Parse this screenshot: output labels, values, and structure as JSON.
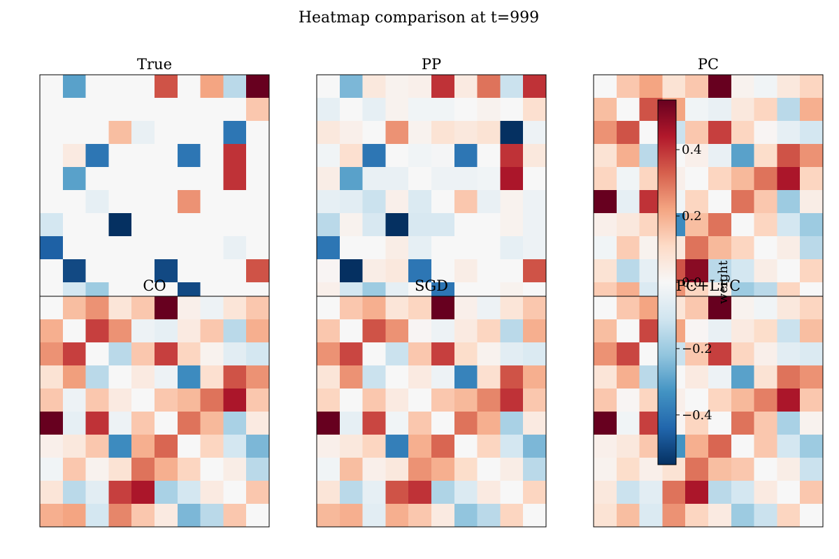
{
  "figure": {
    "title": "Heatmap comparison at t=999"
  },
  "chart_data": {
    "type": "heatmap",
    "colormap": "RdBu_r",
    "value_range": [
      -0.55,
      0.55
    ],
    "colorbar": {
      "label": "weight",
      "ticks": [
        0.4,
        0.2,
        0.0,
        -0.2,
        -0.4
      ],
      "tick_labels": [
        "0.4",
        "0.2",
        "0.0",
        "−0.2",
        "−0.4"
      ]
    },
    "panels": [
      {
        "title": "True",
        "matrix": [
          [
            0,
            -0.3,
            0,
            0,
            0,
            0.35,
            0,
            0.22,
            -0.15,
            0.55
          ],
          [
            0,
            0,
            0,
            0,
            0,
            0,
            0,
            0,
            0,
            0.15
          ],
          [
            0,
            0,
            0,
            0.17,
            -0.04,
            0,
            0,
            0,
            -0.4,
            0
          ],
          [
            0,
            0.05,
            -0.4,
            0,
            0,
            0,
            -0.4,
            0,
            0.4,
            0
          ],
          [
            0,
            -0.3,
            0,
            0,
            0,
            0,
            0,
            0,
            0.4,
            0
          ],
          [
            0,
            0,
            -0.05,
            0,
            0,
            0,
            0.25,
            0,
            0,
            0
          ],
          [
            -0.1,
            0,
            0,
            -0.55,
            0,
            0,
            0,
            0,
            0,
            0
          ],
          [
            -0.45,
            0,
            0,
            0,
            0,
            0,
            0,
            0,
            -0.04,
            0
          ],
          [
            0,
            -0.5,
            0,
            0,
            0,
            -0.5,
            0,
            0,
            0,
            0.35
          ],
          [
            0,
            -0.1,
            -0.2,
            0,
            0,
            0,
            -0.5,
            0,
            0,
            0
          ]
        ]
      },
      {
        "title": "PP",
        "matrix": [
          [
            0,
            -0.25,
            0.06,
            0.02,
            0.03,
            0.4,
            0.05,
            0.3,
            -0.12,
            0.4
          ],
          [
            -0.05,
            0,
            -0.05,
            0.02,
            -0.02,
            -0.02,
            0,
            0.02,
            0,
            0.09
          ],
          [
            0.06,
            0.03,
            0,
            0.25,
            0.02,
            0.08,
            0.06,
            0.08,
            -0.55,
            -0.03
          ],
          [
            -0.02,
            0.09,
            -0.4,
            0,
            -0.02,
            -0.01,
            -0.4,
            0,
            0.4,
            0.06
          ],
          [
            0.04,
            -0.3,
            -0.04,
            -0.04,
            0,
            -0.03,
            -0.03,
            -0.02,
            0.45,
            0
          ],
          [
            -0.05,
            -0.06,
            -0.12,
            0.03,
            -0.08,
            0,
            0.15,
            -0.04,
            0.02,
            -0.03
          ],
          [
            -0.15,
            0.02,
            -0.09,
            -0.6,
            -0.09,
            -0.09,
            0,
            0,
            0.02,
            -0.03
          ],
          [
            -0.4,
            0,
            0,
            0.04,
            -0.05,
            0,
            0,
            0,
            -0.05,
            -0.03
          ],
          [
            0.01,
            -0.6,
            0.04,
            0.06,
            -0.4,
            0,
            0.04,
            0,
            0,
            0.35
          ],
          [
            0.03,
            -0.1,
            -0.2,
            -0.05,
            0,
            -0.4,
            0,
            0,
            0.02,
            0
          ]
        ]
      },
      {
        "title": "PC",
        "matrix": [
          [
            0,
            0.15,
            0.22,
            0.08,
            0.15,
            0.55,
            0.02,
            -0.02,
            0.06,
            0.12
          ],
          [
            0.17,
            0,
            0.35,
            0.22,
            -0.02,
            -0.04,
            0.06,
            0.12,
            -0.15,
            0.2
          ],
          [
            0.25,
            0.35,
            0,
            -0.12,
            0.15,
            0.38,
            0.12,
            0.01,
            -0.05,
            -0.1
          ],
          [
            0.08,
            0.2,
            -0.15,
            0,
            0.03,
            -0.04,
            -0.3,
            0.1,
            0.35,
            0.25
          ],
          [
            0.12,
            -0.02,
            0.12,
            0.03,
            0,
            0.12,
            0.18,
            0.3,
            0.45,
            0.12
          ],
          [
            0.55,
            -0.05,
            0.4,
            -0.02,
            0.12,
            0,
            0.3,
            0.15,
            -0.2,
            0.04
          ],
          [
            0.03,
            0.06,
            0.12,
            -0.35,
            0.17,
            0.3,
            0,
            0.12,
            -0.1,
            -0.2
          ],
          [
            -0.02,
            0.14,
            0.02,
            0.06,
            0.3,
            0.18,
            0.12,
            0,
            0.04,
            -0.15
          ],
          [
            0.08,
            -0.15,
            -0.05,
            0.35,
            0.5,
            -0.15,
            -0.1,
            0.04,
            0,
            0.12
          ],
          [
            0.14,
            0.2,
            -0.08,
            0.25,
            0.12,
            0.04,
            -0.2,
            -0.15,
            0.12,
            0
          ]
        ]
      },
      {
        "title": "CO",
        "matrix": [
          [
            0,
            0.17,
            0.25,
            0.07,
            0.15,
            0.55,
            0.03,
            -0.03,
            0.07,
            0.15
          ],
          [
            0.2,
            0,
            0.38,
            0.25,
            -0.03,
            -0.05,
            0.05,
            0.15,
            -0.15,
            0.2
          ],
          [
            0.25,
            0.38,
            0,
            -0.15,
            0.15,
            0.38,
            0.12,
            0.02,
            -0.06,
            -0.1
          ],
          [
            0.08,
            0.23,
            -0.15,
            0,
            0.05,
            -0.03,
            -0.35,
            0.09,
            0.35,
            0.25
          ],
          [
            0.15,
            -0.03,
            0.15,
            0.05,
            0,
            0.15,
            0.18,
            0.3,
            0.45,
            0.15
          ],
          [
            0.55,
            -0.05,
            0.4,
            -0.03,
            0.15,
            0,
            0.3,
            0.18,
            -0.18,
            0.05
          ],
          [
            0.03,
            0.06,
            0.15,
            -0.35,
            0.2,
            0.32,
            0,
            0.12,
            -0.1,
            -0.25
          ],
          [
            -0.02,
            0.15,
            0.02,
            0.08,
            0.3,
            0.2,
            0.12,
            0,
            0.04,
            -0.15
          ],
          [
            0.07,
            -0.15,
            -0.06,
            0.38,
            0.45,
            -0.18,
            -0.1,
            0.05,
            0,
            0.15
          ],
          [
            0.2,
            0.22,
            -0.1,
            0.27,
            0.15,
            0.05,
            -0.25,
            -0.15,
            0.15,
            0
          ]
        ]
      },
      {
        "title": "SGD",
        "matrix": [
          [
            0,
            0.15,
            0.2,
            0.07,
            0.12,
            0.55,
            0.03,
            -0.03,
            0.07,
            0.15
          ],
          [
            0.15,
            0,
            0.35,
            0.25,
            0.01,
            -0.03,
            0.05,
            0.12,
            -0.15,
            0.2
          ],
          [
            0.25,
            0.37,
            0,
            -0.12,
            0.15,
            0.38,
            0.1,
            0.02,
            -0.06,
            -0.08
          ],
          [
            0.07,
            0.25,
            -0.12,
            0,
            0.05,
            -0.03,
            -0.37,
            0.09,
            0.35,
            0.2
          ],
          [
            0.12,
            0,
            0.15,
            0.05,
            0,
            0.15,
            0.18,
            0.27,
            0.4,
            0.15
          ],
          [
            0.55,
            -0.05,
            0.37,
            -0.02,
            0.15,
            0,
            0.3,
            0.2,
            -0.18,
            0.05
          ],
          [
            0.03,
            0.06,
            0.12,
            -0.38,
            0.2,
            0.32,
            0,
            0.12,
            -0.1,
            -0.25
          ],
          [
            -0.02,
            0.17,
            0.03,
            0.06,
            0.25,
            0.2,
            0.1,
            0,
            0.04,
            -0.15
          ],
          [
            0.07,
            -0.15,
            -0.05,
            0.35,
            0.4,
            -0.17,
            -0.08,
            0.05,
            0,
            0.12
          ],
          [
            0.18,
            0.2,
            -0.06,
            0.2,
            0.15,
            0.05,
            -0.22,
            -0.15,
            0.12,
            0
          ]
        ]
      },
      {
        "title": "PC+LFC",
        "matrix": [
          [
            0,
            0.15,
            0.22,
            0.07,
            0.15,
            0.55,
            0.02,
            -0.02,
            0.06,
            0.12
          ],
          [
            0.17,
            0,
            0.37,
            0.22,
            0.01,
            -0.04,
            0.05,
            0.1,
            -0.12,
            0.17
          ],
          [
            0.25,
            0.37,
            0,
            -0.12,
            0.15,
            0.38,
            0.12,
            0.03,
            -0.06,
            -0.08
          ],
          [
            0.07,
            0.2,
            -0.15,
            0,
            0.05,
            -0.03,
            -0.3,
            0.08,
            0.3,
            0.25
          ],
          [
            0.15,
            0.01,
            0.12,
            0.03,
            0,
            0.12,
            0.18,
            0.28,
            0.45,
            0.15
          ],
          [
            0.55,
            -0.02,
            0.38,
            0.01,
            0.12,
            0,
            0.3,
            0.15,
            -0.18,
            0.02
          ],
          [
            0.03,
            0.06,
            0.15,
            -0.33,
            0.2,
            0.32,
            0,
            0.15,
            -0.1,
            -0.2
          ],
          [
            0.02,
            0.1,
            0.03,
            0.08,
            0.3,
            0.17,
            0.15,
            0,
            0.04,
            -0.12
          ],
          [
            0.06,
            -0.12,
            -0.06,
            0.3,
            0.45,
            -0.15,
            -0.1,
            0.05,
            0,
            0.15
          ],
          [
            0.08,
            0.17,
            -0.08,
            0.25,
            0.12,
            0.05,
            -0.2,
            -0.12,
            0.12,
            0
          ]
        ]
      }
    ]
  }
}
